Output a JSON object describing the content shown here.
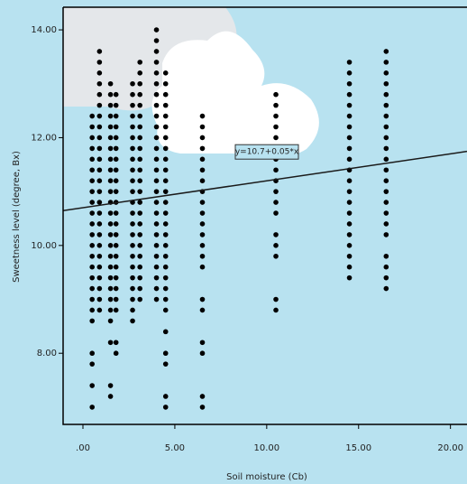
{
  "chart_data": {
    "type": "scatter",
    "xlabel": "Soil moisture (Cb)",
    "ylabel": "Sweetness level (degree, Bx)",
    "xlim": [
      -1.08,
      20.9
    ],
    "ylim": [
      6.68,
      14.42
    ],
    "xticks": [
      {
        "value": 0,
        "label": ".00"
      },
      {
        "value": 5,
        "label": "5.00"
      },
      {
        "value": 10,
        "label": "10.00"
      },
      {
        "value": 15,
        "label": "15.00"
      },
      {
        "value": 20,
        "label": "20.00"
      }
    ],
    "yticks": [
      {
        "value": 8,
        "label": "8.00"
      },
      {
        "value": 10,
        "label": "10.00"
      },
      {
        "value": 12,
        "label": "12.00"
      },
      {
        "value": 14,
        "label": "14.00"
      }
    ],
    "color": "#000000",
    "fit": {
      "intercept": 10.7,
      "slope": 0.05,
      "label": "y=10.7+0.05*x"
    },
    "columns": [
      {
        "x": 0.5,
        "y": [
          7,
          7.4,
          7.8,
          8,
          8.6,
          8.8,
          9,
          9.2,
          9.4,
          9.6,
          9.8,
          10,
          10.2,
          10.4,
          10.6,
          10.8,
          11,
          11.2,
          11.4,
          11.6,
          11.8,
          12,
          12.2,
          12.4
        ]
      },
      {
        "x": 0.9,
        "y": [
          8.8,
          9,
          9.2,
          9.4,
          9.6,
          9.8,
          10,
          10.2,
          10.4,
          10.6,
          10.8,
          11,
          11.2,
          11.4,
          11.6,
          11.8,
          12,
          12.2,
          12.4,
          12.6,
          12.8,
          13,
          13.2,
          13.4,
          13.6
        ]
      },
      {
        "x": 1.5,
        "y": [
          7.2,
          7.4,
          8.2,
          8.6,
          8.8,
          9,
          9.2,
          9.4,
          9.6,
          9.8,
          10,
          10.2,
          10.4,
          10.6,
          10.8,
          11,
          11.2,
          11.4,
          11.6,
          11.8,
          12,
          12.2,
          12.4,
          12.6,
          12.8,
          13
        ]
      },
      {
        "x": 1.8,
        "y": [
          8,
          8.2,
          8.8,
          9,
          9.2,
          9.4,
          9.6,
          9.8,
          10,
          10.2,
          10.4,
          10.6,
          10.8,
          11,
          11.2,
          11.4,
          11.6,
          11.8,
          12,
          12.2,
          12.4,
          12.6,
          12.8
        ]
      },
      {
        "x": 2.7,
        "y": [
          8.6,
          8.8,
          9,
          9.2,
          9.4,
          9.6,
          9.8,
          10,
          10.2,
          10.4,
          10.6,
          10.8,
          11,
          11.2,
          11.4,
          11.6,
          11.8,
          12,
          12.2,
          12.4,
          12.6,
          12.8,
          13
        ]
      },
      {
        "x": 3.1,
        "y": [
          9,
          9.2,
          9.4,
          9.6,
          9.8,
          10,
          10.2,
          10.4,
          10.6,
          10.8,
          11,
          11.2,
          11.4,
          11.6,
          11.8,
          12,
          12.2,
          12.4,
          12.6,
          12.8,
          13,
          13.2,
          13.4
        ]
      },
      {
        "x": 4.0,
        "y": [
          9,
          9.2,
          9.4,
          9.6,
          9.8,
          10,
          10.2,
          10.4,
          10.6,
          10.8,
          11,
          11.2,
          11.4,
          11.6,
          11.8,
          12,
          12.2,
          12.4,
          12.6,
          12.8,
          13,
          13.2,
          13.4,
          13.6,
          13.8,
          14
        ]
      },
      {
        "x": 4.5,
        "y": [
          7,
          7.2,
          7.8,
          8,
          8.4,
          8.8,
          9,
          9.2,
          9.4,
          9.6,
          9.8,
          10,
          10.2,
          10.4,
          10.6,
          10.8,
          11,
          11.2,
          11.4,
          11.6,
          11.8,
          12,
          12.2,
          12.4,
          12.6,
          12.8,
          13,
          13.2
        ]
      },
      {
        "x": 6.5,
        "y": [
          7,
          7.2,
          8,
          8.2,
          8.8,
          9,
          9.6,
          9.8,
          10,
          10.2,
          10.4,
          10.6,
          10.8,
          11,
          11.2,
          11.4,
          11.6,
          11.8,
          12,
          12.2,
          12.4
        ]
      },
      {
        "x": 10.5,
        "y": [
          8.8,
          9,
          9.8,
          10,
          10.2,
          10.6,
          10.8,
          11,
          11.2,
          11.4,
          11.6,
          11.8,
          12,
          12.2,
          12.4,
          12.6,
          12.8
        ]
      },
      {
        "x": 14.5,
        "y": [
          9.4,
          9.6,
          9.8,
          10,
          10.2,
          10.4,
          10.6,
          10.8,
          11,
          11.2,
          11.4,
          11.6,
          11.8,
          12,
          12.2,
          12.4,
          12.6,
          12.8,
          13,
          13.2,
          13.4
        ]
      },
      {
        "x": 16.5,
        "y": [
          9.2,
          9.4,
          9.6,
          9.8,
          10.2,
          10.4,
          10.6,
          10.8,
          11,
          11.2,
          11.4,
          11.6,
          11.8,
          12,
          12.2,
          12.4,
          12.6,
          12.8,
          13,
          13.2,
          13.4,
          13.6
        ]
      }
    ]
  }
}
